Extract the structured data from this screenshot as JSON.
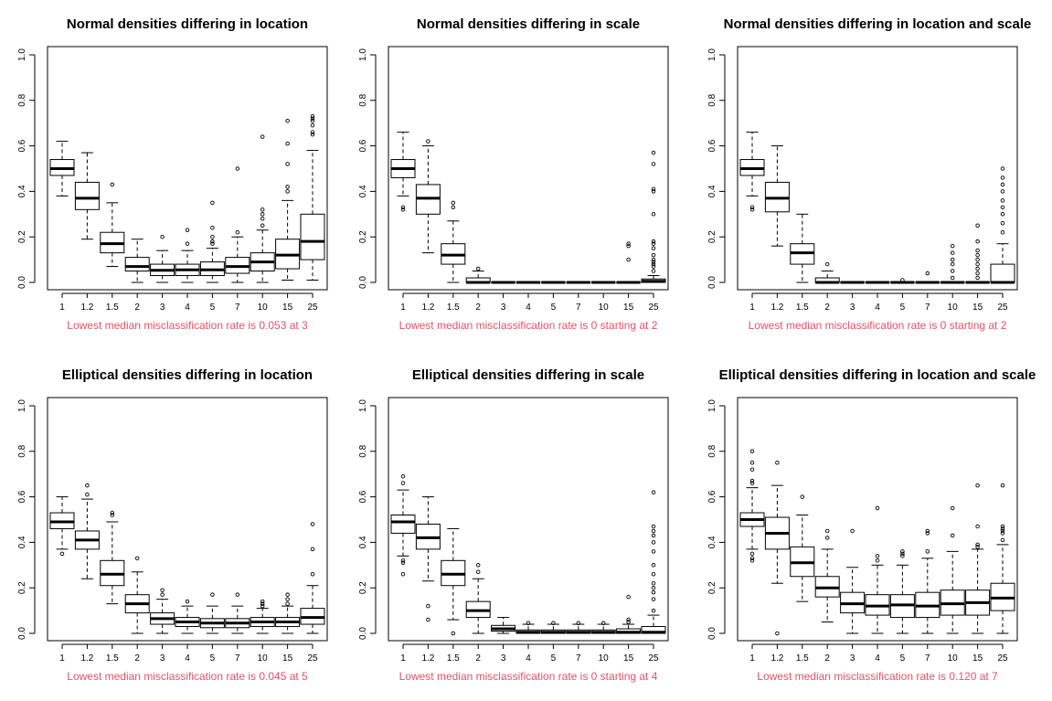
{
  "chart_data": [
    {
      "type": "boxplot",
      "title": "Normal densities differing in location",
      "caption": "Lowest median misclassification rate is 0.053 at 3",
      "categories": [
        "1",
        "1.2",
        "1.5",
        "2",
        "3",
        "4",
        "5",
        "7",
        "10",
        "15",
        "25"
      ],
      "ylim": [
        0,
        1
      ],
      "yticks": [
        "0.0",
        "0.2",
        "0.4",
        "0.6",
        "0.8",
        "1.0"
      ],
      "boxes": [
        {
          "whisker_low": 0.38,
          "q1": 0.47,
          "median": 0.5,
          "q3": 0.54,
          "whisker_high": 0.62,
          "outliers": []
        },
        {
          "whisker_low": 0.19,
          "q1": 0.32,
          "median": 0.37,
          "q3": 0.44,
          "whisker_high": 0.57,
          "outliers": []
        },
        {
          "whisker_low": 0.07,
          "q1": 0.13,
          "median": 0.17,
          "q3": 0.22,
          "whisker_high": 0.35,
          "outliers": [
            0.43
          ]
        },
        {
          "whisker_low": 0.0,
          "q1": 0.05,
          "median": 0.07,
          "q3": 0.11,
          "whisker_high": 0.19,
          "outliers": []
        },
        {
          "whisker_low": 0.0,
          "q1": 0.03,
          "median": 0.053,
          "q3": 0.08,
          "whisker_high": 0.14,
          "outliers": [
            0.2
          ]
        },
        {
          "whisker_low": 0.0,
          "q1": 0.03,
          "median": 0.055,
          "q3": 0.08,
          "whisker_high": 0.14,
          "outliers": [
            0.17,
            0.23
          ]
        },
        {
          "whisker_low": 0.0,
          "q1": 0.03,
          "median": 0.055,
          "q3": 0.09,
          "whisker_high": 0.15,
          "outliers": [
            0.17,
            0.18,
            0.2,
            0.24,
            0.35
          ]
        },
        {
          "whisker_low": 0.0,
          "q1": 0.04,
          "median": 0.07,
          "q3": 0.11,
          "whisker_high": 0.2,
          "outliers": [
            0.22,
            0.5
          ]
        },
        {
          "whisker_low": 0.0,
          "q1": 0.05,
          "median": 0.09,
          "q3": 0.13,
          "whisker_high": 0.23,
          "outliers": [
            0.25,
            0.28,
            0.3,
            0.32,
            0.64
          ]
        },
        {
          "whisker_low": 0.01,
          "q1": 0.06,
          "median": 0.12,
          "q3": 0.19,
          "whisker_high": 0.36,
          "outliers": [
            0.4,
            0.42,
            0.52,
            0.61,
            0.71
          ]
        },
        {
          "whisker_low": 0.01,
          "q1": 0.1,
          "median": 0.18,
          "q3": 0.3,
          "whisker_high": 0.58,
          "outliers": [
            0.65,
            0.66,
            0.69,
            0.71,
            0.72,
            0.73
          ]
        }
      ]
    },
    {
      "type": "boxplot",
      "title": "Normal densities differing in scale",
      "caption": "Lowest median misclassification rate is 0 starting at 2",
      "categories": [
        "1",
        "1.2",
        "1.5",
        "2",
        "3",
        "4",
        "5",
        "7",
        "10",
        "15",
        "25"
      ],
      "ylim": [
        0,
        1
      ],
      "yticks": [
        "0.0",
        "0.2",
        "0.4",
        "0.6",
        "0.8",
        "1.0"
      ],
      "boxes": [
        {
          "whisker_low": 0.38,
          "q1": 0.46,
          "median": 0.5,
          "q3": 0.54,
          "whisker_high": 0.66,
          "outliers": [
            0.32,
            0.33
          ]
        },
        {
          "whisker_low": 0.13,
          "q1": 0.3,
          "median": 0.37,
          "q3": 0.43,
          "whisker_high": 0.6,
          "outliers": [
            0.62
          ]
        },
        {
          "whisker_low": 0.0,
          "q1": 0.08,
          "median": 0.12,
          "q3": 0.17,
          "whisker_high": 0.27,
          "outliers": [
            0.33,
            0.35
          ]
        },
        {
          "whisker_low": 0.0,
          "q1": 0.0,
          "median": 0.0,
          "q3": 0.02,
          "whisker_high": 0.05,
          "outliers": [
            0.06
          ]
        },
        {
          "whisker_low": 0.0,
          "q1": 0.0,
          "median": 0.0,
          "q3": 0.0,
          "whisker_high": 0.0,
          "outliers": []
        },
        {
          "whisker_low": 0.0,
          "q1": 0.0,
          "median": 0.0,
          "q3": 0.0,
          "whisker_high": 0.0,
          "outliers": []
        },
        {
          "whisker_low": 0.0,
          "q1": 0.0,
          "median": 0.0,
          "q3": 0.0,
          "whisker_high": 0.0,
          "outliers": []
        },
        {
          "whisker_low": 0.0,
          "q1": 0.0,
          "median": 0.0,
          "q3": 0.0,
          "whisker_high": 0.0,
          "outliers": []
        },
        {
          "whisker_low": 0.0,
          "q1": 0.0,
          "median": 0.0,
          "q3": 0.0,
          "whisker_high": 0.0,
          "outliers": []
        },
        {
          "whisker_low": 0.0,
          "q1": 0.0,
          "median": 0.0,
          "q3": 0.0,
          "whisker_high": 0.0,
          "outliers": [
            0.1,
            0.16,
            0.17
          ]
        },
        {
          "whisker_low": 0.0,
          "q1": 0.0,
          "median": 0.005,
          "q3": 0.015,
          "whisker_high": 0.03,
          "outliers": [
            0.05,
            0.07,
            0.08,
            0.09,
            0.1,
            0.12,
            0.15,
            0.17,
            0.18,
            0.3,
            0.4,
            0.41,
            0.52,
            0.57
          ]
        }
      ]
    },
    {
      "type": "boxplot",
      "title": "Normal densities differing in location and scale",
      "caption": "Lowest median misclassification rate is 0 starting at 2",
      "categories": [
        "1",
        "1.2",
        "1.5",
        "2",
        "3",
        "4",
        "5",
        "7",
        "10",
        "15",
        "25"
      ],
      "ylim": [
        0,
        1
      ],
      "yticks": [
        "0.0",
        "0.2",
        "0.4",
        "0.6",
        "0.8",
        "1.0"
      ],
      "boxes": [
        {
          "whisker_low": 0.38,
          "q1": 0.47,
          "median": 0.5,
          "q3": 0.54,
          "whisker_high": 0.66,
          "outliers": [
            0.32,
            0.33
          ]
        },
        {
          "whisker_low": 0.16,
          "q1": 0.31,
          "median": 0.37,
          "q3": 0.44,
          "whisker_high": 0.6,
          "outliers": []
        },
        {
          "whisker_low": 0.0,
          "q1": 0.08,
          "median": 0.13,
          "q3": 0.17,
          "whisker_high": 0.3,
          "outliers": []
        },
        {
          "whisker_low": 0.0,
          "q1": 0.0,
          "median": 0.0,
          "q3": 0.02,
          "whisker_high": 0.05,
          "outliers": [
            0.08
          ]
        },
        {
          "whisker_low": 0.0,
          "q1": 0.0,
          "median": 0.0,
          "q3": 0.0,
          "whisker_high": 0.0,
          "outliers": []
        },
        {
          "whisker_low": 0.0,
          "q1": 0.0,
          "median": 0.0,
          "q3": 0.0,
          "whisker_high": 0.0,
          "outliers": []
        },
        {
          "whisker_low": 0.0,
          "q1": 0.0,
          "median": 0.0,
          "q3": 0.0,
          "whisker_high": 0.0,
          "outliers": [
            0.01
          ]
        },
        {
          "whisker_low": 0.0,
          "q1": 0.0,
          "median": 0.0,
          "q3": 0.0,
          "whisker_high": 0.0,
          "outliers": [
            0.04
          ]
        },
        {
          "whisker_low": 0.0,
          "q1": 0.0,
          "median": 0.0,
          "q3": 0.0,
          "whisker_high": 0.0,
          "outliers": [
            0.02,
            0.05,
            0.08,
            0.1,
            0.13,
            0.16
          ]
        },
        {
          "whisker_low": 0.0,
          "q1": 0.0,
          "median": 0.0,
          "q3": 0.0,
          "whisker_high": 0.0,
          "outliers": [
            0.02,
            0.04,
            0.06,
            0.08,
            0.1,
            0.12,
            0.14,
            0.18,
            0.25
          ]
        },
        {
          "whisker_low": 0.0,
          "q1": 0.0,
          "median": 0.0,
          "q3": 0.08,
          "whisker_high": 0.17,
          "outliers": [
            0.22,
            0.26,
            0.3,
            0.33,
            0.36,
            0.4,
            0.43,
            0.46,
            0.5
          ]
        }
      ]
    },
    {
      "type": "boxplot",
      "title": "Elliptical densities differing in location",
      "caption": "Lowest median misclassification rate is 0.045 at 5",
      "categories": [
        "1",
        "1.2",
        "1.5",
        "2",
        "3",
        "4",
        "5",
        "7",
        "10",
        "15",
        "25"
      ],
      "ylim": [
        0,
        1
      ],
      "yticks": [
        "0.0",
        "0.2",
        "0.4",
        "0.6",
        "0.8",
        "1.0"
      ],
      "boxes": [
        {
          "whisker_low": 0.37,
          "q1": 0.46,
          "median": 0.49,
          "q3": 0.53,
          "whisker_high": 0.6,
          "outliers": [
            0.35
          ]
        },
        {
          "whisker_low": 0.24,
          "q1": 0.37,
          "median": 0.41,
          "q3": 0.45,
          "whisker_high": 0.59,
          "outliers": [
            0.61,
            0.65
          ]
        },
        {
          "whisker_low": 0.13,
          "q1": 0.21,
          "median": 0.26,
          "q3": 0.32,
          "whisker_high": 0.49,
          "outliers": [
            0.52,
            0.53
          ]
        },
        {
          "whisker_low": 0.0,
          "q1": 0.09,
          "median": 0.13,
          "q3": 0.17,
          "whisker_high": 0.27,
          "outliers": [
            0.33
          ]
        },
        {
          "whisker_low": 0.0,
          "q1": 0.04,
          "median": 0.065,
          "q3": 0.09,
          "whisker_high": 0.15,
          "outliers": [
            0.17,
            0.19
          ]
        },
        {
          "whisker_low": 0.0,
          "q1": 0.03,
          "median": 0.05,
          "q3": 0.07,
          "whisker_high": 0.12,
          "outliers": [
            0.14
          ]
        },
        {
          "whisker_low": 0.0,
          "q1": 0.025,
          "median": 0.045,
          "q3": 0.065,
          "whisker_high": 0.12,
          "outliers": [
            0.17
          ]
        },
        {
          "whisker_low": 0.0,
          "q1": 0.025,
          "median": 0.045,
          "q3": 0.065,
          "whisker_high": 0.12,
          "outliers": [
            0.17
          ]
        },
        {
          "whisker_low": 0.0,
          "q1": 0.03,
          "median": 0.05,
          "q3": 0.07,
          "whisker_high": 0.11,
          "outliers": [
            0.12,
            0.13,
            0.14
          ]
        },
        {
          "whisker_low": 0.0,
          "q1": 0.03,
          "median": 0.05,
          "q3": 0.07,
          "whisker_high": 0.12,
          "outliers": [
            0.13,
            0.15,
            0.17
          ]
        },
        {
          "whisker_low": 0.0,
          "q1": 0.04,
          "median": 0.07,
          "q3": 0.11,
          "whisker_high": 0.21,
          "outliers": [
            0.26,
            0.37,
            0.48
          ]
        }
      ]
    },
    {
      "type": "boxplot",
      "title": "Elliptical densities differing in scale",
      "caption": "Lowest median misclassification rate is 0 starting at 4",
      "categories": [
        "1",
        "1.2",
        "1.5",
        "2",
        "3",
        "4",
        "5",
        "7",
        "10",
        "15",
        "25"
      ],
      "ylim": [
        0,
        1
      ],
      "yticks": [
        "0.0",
        "0.2",
        "0.4",
        "0.6",
        "0.8",
        "1.0"
      ],
      "boxes": [
        {
          "whisker_low": 0.34,
          "q1": 0.44,
          "median": 0.49,
          "q3": 0.52,
          "whisker_high": 0.63,
          "outliers": [
            0.26,
            0.31,
            0.32,
            0.66,
            0.69
          ]
        },
        {
          "whisker_low": 0.23,
          "q1": 0.37,
          "median": 0.42,
          "q3": 0.48,
          "whisker_high": 0.6,
          "outliers": [
            0.06,
            0.12
          ]
        },
        {
          "whisker_low": 0.06,
          "q1": 0.21,
          "median": 0.26,
          "q3": 0.32,
          "whisker_high": 0.46,
          "outliers": [
            0.0
          ]
        },
        {
          "whisker_low": 0.0,
          "q1": 0.07,
          "median": 0.1,
          "q3": 0.14,
          "whisker_high": 0.24,
          "outliers": [
            0.27,
            0.3
          ]
        },
        {
          "whisker_low": 0.0,
          "q1": 0.01,
          "median": 0.02,
          "q3": 0.035,
          "whisker_high": 0.07,
          "outliers": []
        },
        {
          "whisker_low": 0.0,
          "q1": 0.0,
          "median": 0.005,
          "q3": 0.015,
          "whisker_high": 0.04,
          "outliers": [
            0.045
          ]
        },
        {
          "whisker_low": 0.0,
          "q1": 0.0,
          "median": 0.005,
          "q3": 0.015,
          "whisker_high": 0.04,
          "outliers": [
            0.045
          ]
        },
        {
          "whisker_low": 0.0,
          "q1": 0.0,
          "median": 0.005,
          "q3": 0.015,
          "whisker_high": 0.04,
          "outliers": [
            0.045
          ]
        },
        {
          "whisker_low": 0.0,
          "q1": 0.0,
          "median": 0.005,
          "q3": 0.015,
          "whisker_high": 0.04,
          "outliers": [
            0.045
          ]
        },
        {
          "whisker_low": 0.0,
          "q1": 0.0,
          "median": 0.005,
          "q3": 0.02,
          "whisker_high": 0.04,
          "outliers": [
            0.05,
            0.06,
            0.16
          ]
        },
        {
          "whisker_low": 0.0,
          "q1": 0.0,
          "median": 0.005,
          "q3": 0.03,
          "whisker_high": 0.08,
          "outliers": [
            0.1,
            0.15,
            0.18,
            0.2,
            0.22,
            0.26,
            0.3,
            0.36,
            0.4,
            0.43,
            0.45,
            0.47,
            0.62
          ]
        }
      ]
    },
    {
      "type": "boxplot",
      "title": "Elliptical densities differing in location and scale",
      "caption": "Lowest median misclassification rate is 0.120 at 7",
      "categories": [
        "1",
        "1.2",
        "1.5",
        "2",
        "3",
        "4",
        "5",
        "7",
        "10",
        "15",
        "25"
      ],
      "ylim": [
        0,
        1
      ],
      "yticks": [
        "0.0",
        "0.2",
        "0.4",
        "0.6",
        "0.8",
        "1.0"
      ],
      "boxes": [
        {
          "whisker_low": 0.37,
          "q1": 0.47,
          "median": 0.5,
          "q3": 0.53,
          "whisker_high": 0.64,
          "outliers": [
            0.32,
            0.33,
            0.35,
            0.66,
            0.67,
            0.72,
            0.75,
            0.8
          ]
        },
        {
          "whisker_low": 0.22,
          "q1": 0.37,
          "median": 0.44,
          "q3": 0.51,
          "whisker_high": 0.65,
          "outliers": [
            0.0,
            0.75
          ]
        },
        {
          "whisker_low": 0.14,
          "q1": 0.25,
          "median": 0.31,
          "q3": 0.38,
          "whisker_high": 0.52,
          "outliers": [
            0.6
          ]
        },
        {
          "whisker_low": 0.05,
          "q1": 0.16,
          "median": 0.2,
          "q3": 0.25,
          "whisker_high": 0.37,
          "outliers": [
            0.42,
            0.45
          ]
        },
        {
          "whisker_low": 0.0,
          "q1": 0.09,
          "median": 0.13,
          "q3": 0.18,
          "whisker_high": 0.29,
          "outliers": [
            0.45
          ]
        },
        {
          "whisker_low": 0.0,
          "q1": 0.08,
          "median": 0.12,
          "q3": 0.17,
          "whisker_high": 0.3,
          "outliers": [
            0.32,
            0.34,
            0.55
          ]
        },
        {
          "whisker_low": 0.0,
          "q1": 0.07,
          "median": 0.125,
          "q3": 0.17,
          "whisker_high": 0.3,
          "outliers": [
            0.34,
            0.35,
            0.36
          ]
        },
        {
          "whisker_low": 0.0,
          "q1": 0.07,
          "median": 0.12,
          "q3": 0.18,
          "whisker_high": 0.33,
          "outliers": [
            0.36,
            0.44,
            0.45
          ]
        },
        {
          "whisker_low": 0.0,
          "q1": 0.08,
          "median": 0.13,
          "q3": 0.19,
          "whisker_high": 0.36,
          "outliers": [
            0.43,
            0.55
          ]
        },
        {
          "whisker_low": 0.0,
          "q1": 0.08,
          "median": 0.135,
          "q3": 0.19,
          "whisker_high": 0.37,
          "outliers": [
            0.38,
            0.39,
            0.47,
            0.65
          ]
        },
        {
          "whisker_low": 0.0,
          "q1": 0.1,
          "median": 0.155,
          "q3": 0.22,
          "whisker_high": 0.39,
          "outliers": [
            0.41,
            0.44,
            0.45,
            0.46,
            0.47,
            0.65
          ]
        }
      ]
    }
  ],
  "colors": {
    "caption": "#df536b",
    "ink": "#000000",
    "background": "#ffffff"
  }
}
